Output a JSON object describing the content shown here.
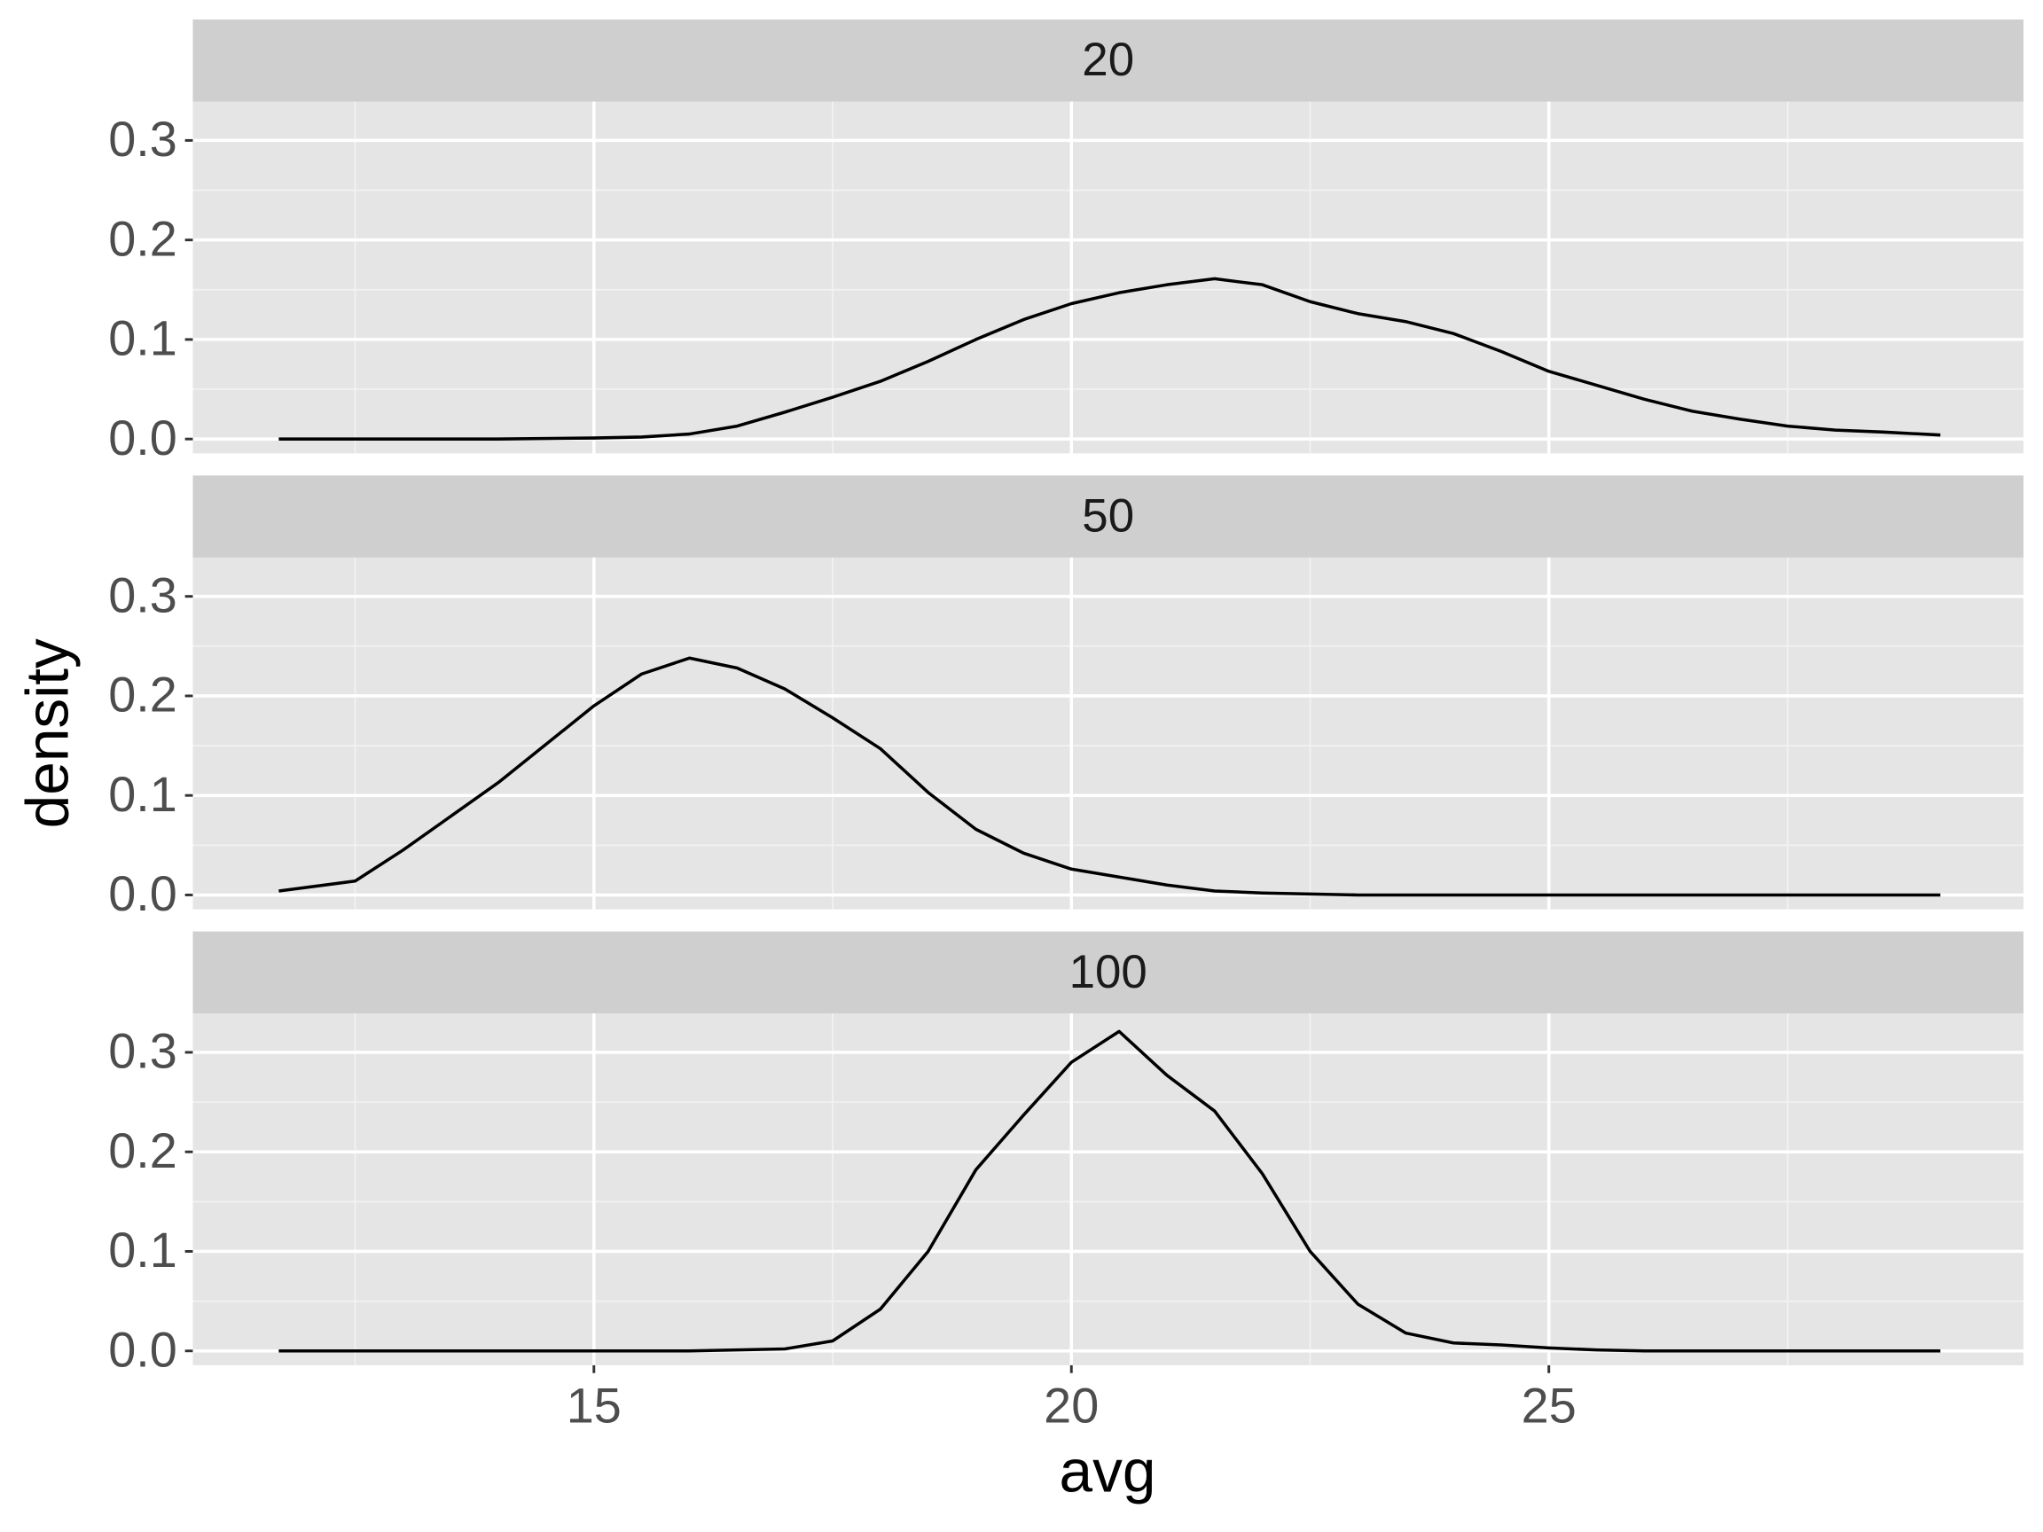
{
  "chart_data": {
    "type": "line",
    "xlabel": "avg",
    "ylabel": "density",
    "x": [
      11.7,
      12.5,
      13,
      14,
      15,
      15.5,
      16,
      16.5,
      17,
      17.5,
      18,
      18.5,
      19,
      19.5,
      20,
      20.5,
      21,
      21.5,
      22,
      22.5,
      23,
      23.5,
      24,
      24.5,
      25,
      25.5,
      26,
      26.5,
      27,
      27.5,
      28,
      28.5,
      29.1
    ],
    "series": [
      {
        "name": "20",
        "color": "#000000",
        "values": [
          0,
          0,
          0,
          0,
          0.001,
          0.002,
          0.005,
          0.013,
          0.027,
          0.042,
          0.058,
          0.078,
          0.1,
          0.12,
          0.136,
          0.147,
          0.155,
          0.161,
          0.155,
          0.138,
          0.126,
          0.118,
          0.106,
          0.088,
          0.068,
          0.054,
          0.04,
          0.028,
          0.02,
          0.013,
          0.009,
          0.007,
          0.004
        ]
      },
      {
        "name": "50",
        "color": "#000000",
        "values": [
          0.004,
          0.014,
          0.045,
          0.113,
          0.19,
          0.222,
          0.238,
          0.228,
          0.207,
          0.178,
          0.147,
          0.103,
          0.066,
          0.042,
          0.026,
          0.018,
          0.01,
          0.004,
          0.002,
          0.001,
          0,
          0,
          0,
          0,
          0,
          0,
          0,
          0,
          0,
          0,
          0,
          0,
          0
        ]
      },
      {
        "name": "100",
        "color": "#000000",
        "values": [
          0,
          0,
          0,
          0,
          0,
          0,
          0,
          0.001,
          0.002,
          0.01,
          0.042,
          0.1,
          0.182,
          0.237,
          0.29,
          0.321,
          0.277,
          0.241,
          0.178,
          0.1,
          0.047,
          0.018,
          0.008,
          0.006,
          0.003,
          0.001,
          0,
          0,
          0,
          0,
          0,
          0,
          0
        ]
      }
    ],
    "xlim": [
      10.8,
      29.97
    ],
    "xticks": [
      15,
      20,
      25
    ],
    "xminor": [
      12.5,
      17.5,
      22.5,
      27.5
    ],
    "ylim": [
      -0.0144,
      0.339
    ],
    "yticks": [
      {
        "value": 0,
        "label": "0.0"
      },
      0.1,
      0.2,
      0.3
    ],
    "yminor": [
      0.05,
      0.15,
      0.25
    ],
    "grid": true
  }
}
